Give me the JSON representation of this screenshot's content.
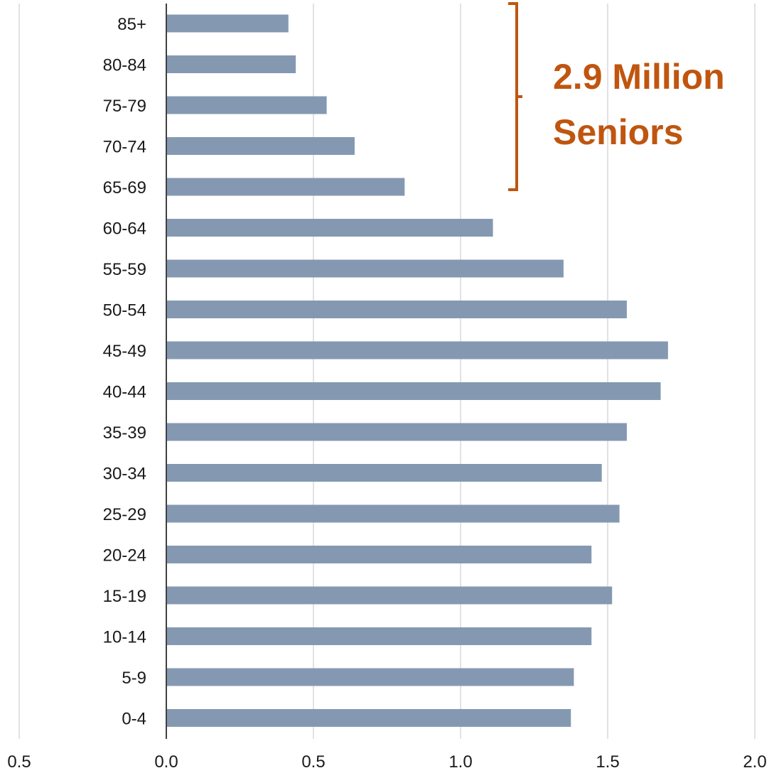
{
  "colors": {
    "bar": "#8499b1",
    "grid": "#d9d9d9",
    "axis": "#404040",
    "callout": "#c0550f",
    "negative_tick": "#e02020"
  },
  "chart_data": {
    "type": "bar",
    "orientation": "horizontal",
    "title": "",
    "xlabel": "",
    "ylabel": "",
    "categories": [
      "0-4",
      "5-9",
      "10-14",
      "15-19",
      "20-24",
      "25-29",
      "30-34",
      "35-39",
      "40-44",
      "45-49",
      "50-54",
      "55-59",
      "60-64",
      "65-69",
      "70-74",
      "75-79",
      "80-84",
      "85+"
    ],
    "values": [
      1.375,
      1.385,
      1.445,
      1.515,
      1.445,
      1.54,
      1.48,
      1.565,
      1.68,
      1.705,
      1.565,
      1.35,
      1.11,
      0.81,
      0.64,
      0.545,
      0.44,
      0.415
    ],
    "xlim": [
      -0.5,
      2.0
    ],
    "xticks": [
      -0.5,
      0.0,
      0.5,
      1.0,
      1.5,
      2.0
    ],
    "xtick_labels": [
      "0.5",
      "0.0",
      "0.5",
      "1.0",
      "1.5",
      "2.0"
    ],
    "grid": "vertical",
    "legend": "none",
    "annotation": {
      "lines": [
        "2.9 Million",
        "Seniors"
      ],
      "bracket_categories": [
        "65-69",
        "85+"
      ]
    }
  }
}
